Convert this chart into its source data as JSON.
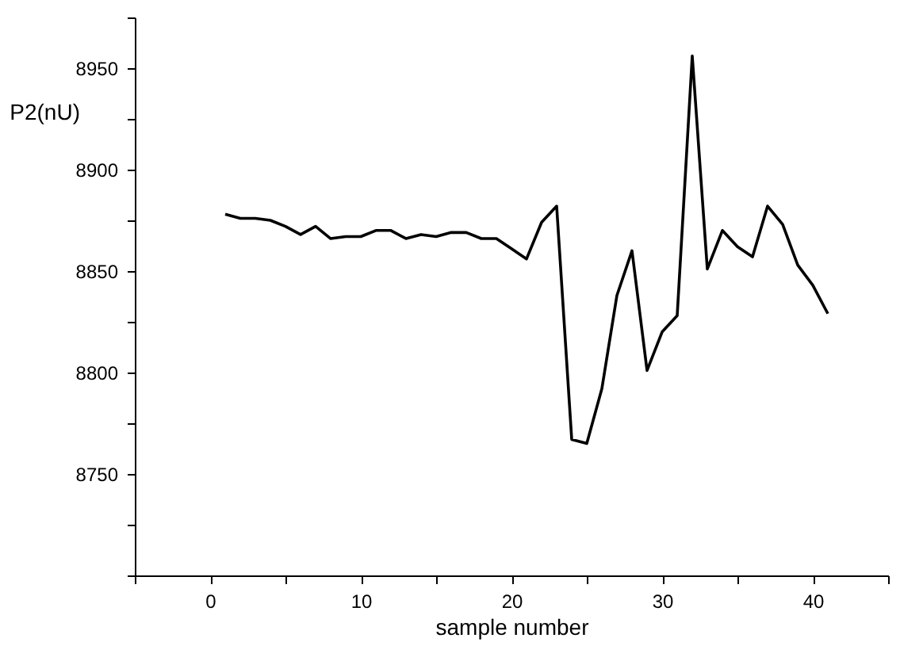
{
  "chart_data": {
    "type": "line",
    "xlabel": "sample number",
    "ylabel": "P2(nU)",
    "x": [
      1,
      2,
      3,
      4,
      5,
      6,
      7,
      8,
      9,
      10,
      11,
      12,
      13,
      14,
      15,
      16,
      17,
      18,
      19,
      20,
      21,
      22,
      23,
      24,
      25,
      26,
      27,
      28,
      29,
      30,
      31,
      32,
      33,
      34,
      35,
      36,
      37,
      38,
      39,
      40,
      41
    ],
    "series": [
      {
        "color": "#000000",
        "values": [
          8878,
          8876,
          8876,
          8875,
          8872,
          8868,
          8872,
          8866,
          8867,
          8867,
          8870,
          8870,
          8866,
          8868,
          8867,
          8869,
          8869,
          8866,
          8866,
          8861,
          8856,
          8874,
          8882,
          8767,
          8765,
          8792,
          8838,
          8860,
          8801,
          8820,
          8828,
          8956,
          8851,
          8870,
          8862,
          8857,
          8882,
          8873,
          8853,
          8843,
          8829
        ]
      }
    ],
    "xlim": [
      -5,
      45
    ],
    "xticks": [
      {
        "value": -5,
        "label": null
      },
      0,
      {
        "value": 5,
        "label": null
      },
      10,
      {
        "value": 15,
        "label": null
      },
      20,
      {
        "value": 25,
        "label": null
      },
      30,
      {
        "value": 35,
        "label": null
      },
      40,
      {
        "value": 45,
        "label": null
      }
    ],
    "ylim": [
      8700,
      8975
    ],
    "yticks": [
      {
        "value": 8700,
        "label": null
      },
      {
        "value": 8725,
        "label": null
      },
      8750,
      {
        "value": 8775,
        "label": null
      },
      8800,
      {
        "value": 8825,
        "label": null
      },
      8850,
      {
        "value": 8875,
        "label": null
      },
      8900,
      {
        "value": 8925,
        "label": null
      },
      8950,
      {
        "value": 8975,
        "label": null
      }
    ],
    "grid": false,
    "marker": "none",
    "line_style": "solid"
  }
}
